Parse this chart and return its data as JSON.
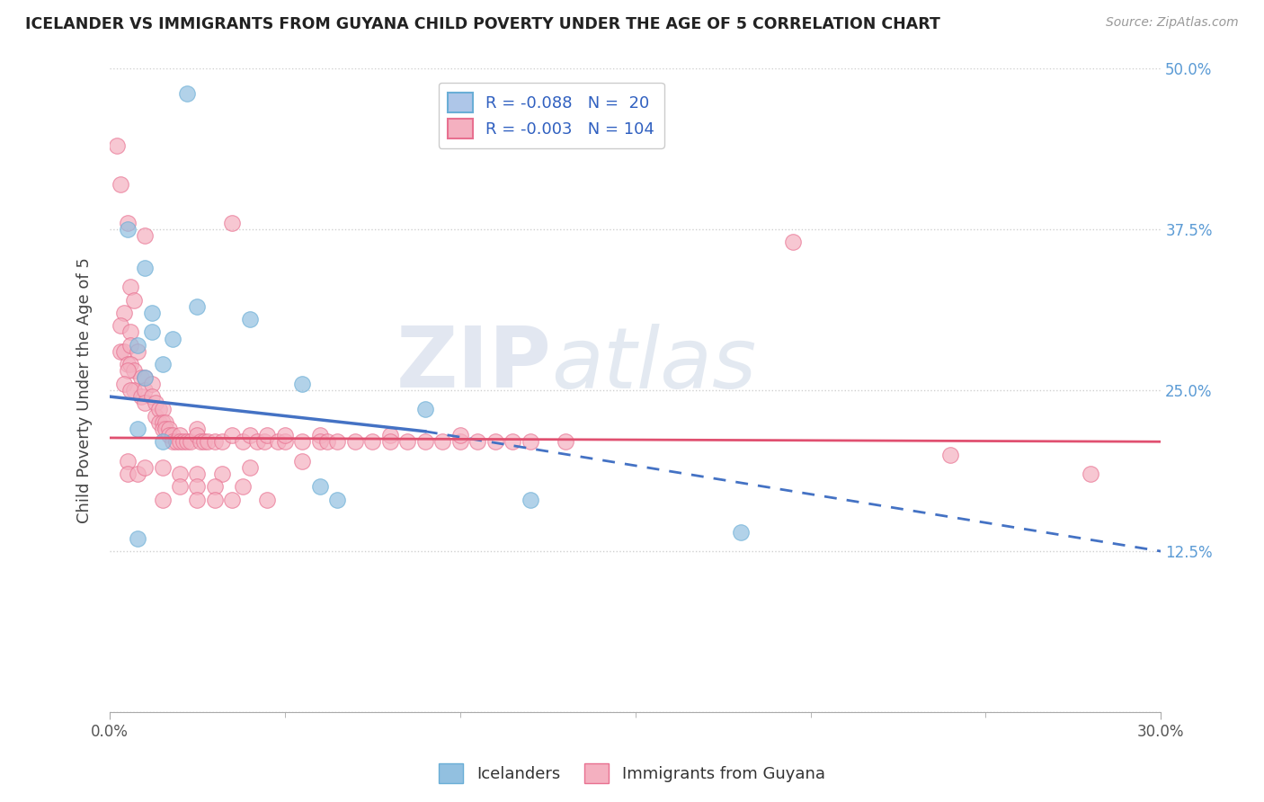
{
  "title": "ICELANDER VS IMMIGRANTS FROM GUYANA CHILD POVERTY UNDER THE AGE OF 5 CORRELATION CHART",
  "source": "Source: ZipAtlas.com",
  "ylabel": "Child Poverty Under the Age of 5",
  "xmin": 0.0,
  "xmax": 0.3,
  "ymin": 0.0,
  "ymax": 0.5,
  "legend_entries": [
    {
      "label": "R = -0.088   N =  20",
      "facecolor": "#aec6e8",
      "edgecolor": "#6aaed6"
    },
    {
      "label": "R = -0.003   N = 104",
      "facecolor": "#f4b0c0",
      "edgecolor": "#e87090"
    }
  ],
  "bottom_legend": [
    "Icelanders",
    "Immigrants from Guyana"
  ],
  "blue_color": "#92c0e0",
  "blue_edge": "#6aaed6",
  "pink_color": "#f4b0c0",
  "pink_edge": "#e87090",
  "blue_scatter": [
    [
      0.022,
      0.48
    ],
    [
      0.005,
      0.375
    ],
    [
      0.01,
      0.345
    ],
    [
      0.012,
      0.31
    ],
    [
      0.012,
      0.295
    ],
    [
      0.018,
      0.29
    ],
    [
      0.008,
      0.285
    ],
    [
      0.015,
      0.27
    ],
    [
      0.01,
      0.26
    ],
    [
      0.025,
      0.315
    ],
    [
      0.04,
      0.305
    ],
    [
      0.055,
      0.255
    ],
    [
      0.09,
      0.235
    ],
    [
      0.008,
      0.22
    ],
    [
      0.015,
      0.21
    ],
    [
      0.06,
      0.175
    ],
    [
      0.065,
      0.165
    ],
    [
      0.12,
      0.165
    ],
    [
      0.18,
      0.14
    ],
    [
      0.008,
      0.135
    ]
  ],
  "pink_scatter": [
    [
      0.002,
      0.44
    ],
    [
      0.003,
      0.41
    ],
    [
      0.005,
      0.38
    ],
    [
      0.01,
      0.37
    ],
    [
      0.006,
      0.33
    ],
    [
      0.007,
      0.32
    ],
    [
      0.004,
      0.31
    ],
    [
      0.003,
      0.3
    ],
    [
      0.003,
      0.28
    ],
    [
      0.004,
      0.28
    ],
    [
      0.006,
      0.295
    ],
    [
      0.006,
      0.285
    ],
    [
      0.008,
      0.28
    ],
    [
      0.005,
      0.27
    ],
    [
      0.006,
      0.27
    ],
    [
      0.007,
      0.265
    ],
    [
      0.009,
      0.26
    ],
    [
      0.005,
      0.265
    ],
    [
      0.004,
      0.255
    ],
    [
      0.007,
      0.25
    ],
    [
      0.006,
      0.25
    ],
    [
      0.009,
      0.245
    ],
    [
      0.01,
      0.26
    ],
    [
      0.01,
      0.25
    ],
    [
      0.01,
      0.24
    ],
    [
      0.012,
      0.255
    ],
    [
      0.012,
      0.245
    ],
    [
      0.013,
      0.24
    ],
    [
      0.013,
      0.23
    ],
    [
      0.014,
      0.235
    ],
    [
      0.014,
      0.225
    ],
    [
      0.015,
      0.235
    ],
    [
      0.015,
      0.225
    ],
    [
      0.015,
      0.22
    ],
    [
      0.016,
      0.225
    ],
    [
      0.016,
      0.22
    ],
    [
      0.017,
      0.22
    ],
    [
      0.017,
      0.215
    ],
    [
      0.018,
      0.215
    ],
    [
      0.018,
      0.21
    ],
    [
      0.019,
      0.21
    ],
    [
      0.02,
      0.215
    ],
    [
      0.02,
      0.21
    ],
    [
      0.021,
      0.21
    ],
    [
      0.022,
      0.21
    ],
    [
      0.023,
      0.21
    ],
    [
      0.025,
      0.22
    ],
    [
      0.025,
      0.215
    ],
    [
      0.026,
      0.21
    ],
    [
      0.027,
      0.21
    ],
    [
      0.028,
      0.21
    ],
    [
      0.03,
      0.21
    ],
    [
      0.032,
      0.21
    ],
    [
      0.035,
      0.215
    ],
    [
      0.038,
      0.21
    ],
    [
      0.04,
      0.215
    ],
    [
      0.042,
      0.21
    ],
    [
      0.044,
      0.21
    ],
    [
      0.045,
      0.215
    ],
    [
      0.048,
      0.21
    ],
    [
      0.05,
      0.21
    ],
    [
      0.05,
      0.215
    ],
    [
      0.055,
      0.21
    ],
    [
      0.06,
      0.215
    ],
    [
      0.06,
      0.21
    ],
    [
      0.062,
      0.21
    ],
    [
      0.065,
      0.21
    ],
    [
      0.07,
      0.21
    ],
    [
      0.075,
      0.21
    ],
    [
      0.08,
      0.215
    ],
    [
      0.08,
      0.21
    ],
    [
      0.085,
      0.21
    ],
    [
      0.09,
      0.21
    ],
    [
      0.095,
      0.21
    ],
    [
      0.1,
      0.21
    ],
    [
      0.1,
      0.215
    ],
    [
      0.105,
      0.21
    ],
    [
      0.11,
      0.21
    ],
    [
      0.115,
      0.21
    ],
    [
      0.12,
      0.21
    ],
    [
      0.005,
      0.195
    ],
    [
      0.005,
      0.185
    ],
    [
      0.008,
      0.185
    ],
    [
      0.01,
      0.19
    ],
    [
      0.015,
      0.19
    ],
    [
      0.02,
      0.185
    ],
    [
      0.025,
      0.185
    ],
    [
      0.032,
      0.185
    ],
    [
      0.04,
      0.19
    ],
    [
      0.02,
      0.175
    ],
    [
      0.025,
      0.175
    ],
    [
      0.03,
      0.175
    ],
    [
      0.035,
      0.38
    ],
    [
      0.038,
      0.175
    ],
    [
      0.015,
      0.165
    ],
    [
      0.025,
      0.165
    ],
    [
      0.03,
      0.165
    ],
    [
      0.035,
      0.165
    ],
    [
      0.045,
      0.165
    ],
    [
      0.195,
      0.365
    ],
    [
      0.24,
      0.2
    ],
    [
      0.28,
      0.185
    ],
    [
      0.13,
      0.21
    ],
    [
      0.055,
      0.195
    ]
  ],
  "blue_line_solid": {
    "x0": 0.0,
    "y0": 0.245,
    "x1": 0.09,
    "y1": 0.218
  },
  "blue_line_dashed": {
    "x0": 0.09,
    "y0": 0.218,
    "x1": 0.3,
    "y1": 0.125
  },
  "pink_line": {
    "x0": 0.0,
    "y0": 0.213,
    "x1": 0.3,
    "y1": 0.21
  },
  "watermark_zip": "ZIP",
  "watermark_atlas": "atlas",
  "bg_color": "#ffffff",
  "grid_color": "#d0d0d0"
}
